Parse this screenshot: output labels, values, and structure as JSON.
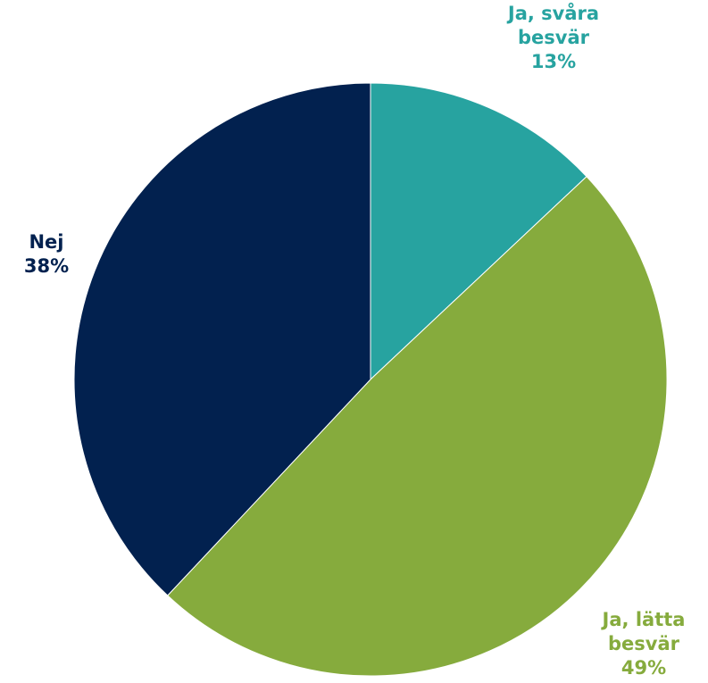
{
  "chart_data": {
    "type": "pie",
    "title": "",
    "slices": [
      {
        "label_lines": [
          "Ja, svåra",
          "besvär"
        ],
        "value": 13,
        "value_label": "13%",
        "color": "#27a3a0"
      },
      {
        "label_lines": [
          "Ja, lätta",
          "besvär"
        ],
        "value": 49,
        "value_label": "49%",
        "color": "#86ab3d"
      },
      {
        "label_lines": [
          "Nej"
        ],
        "value": 38,
        "value_label": "38%",
        "color": "#02214f"
      }
    ],
    "start_angle_deg": 0,
    "direction": "clockwise"
  }
}
